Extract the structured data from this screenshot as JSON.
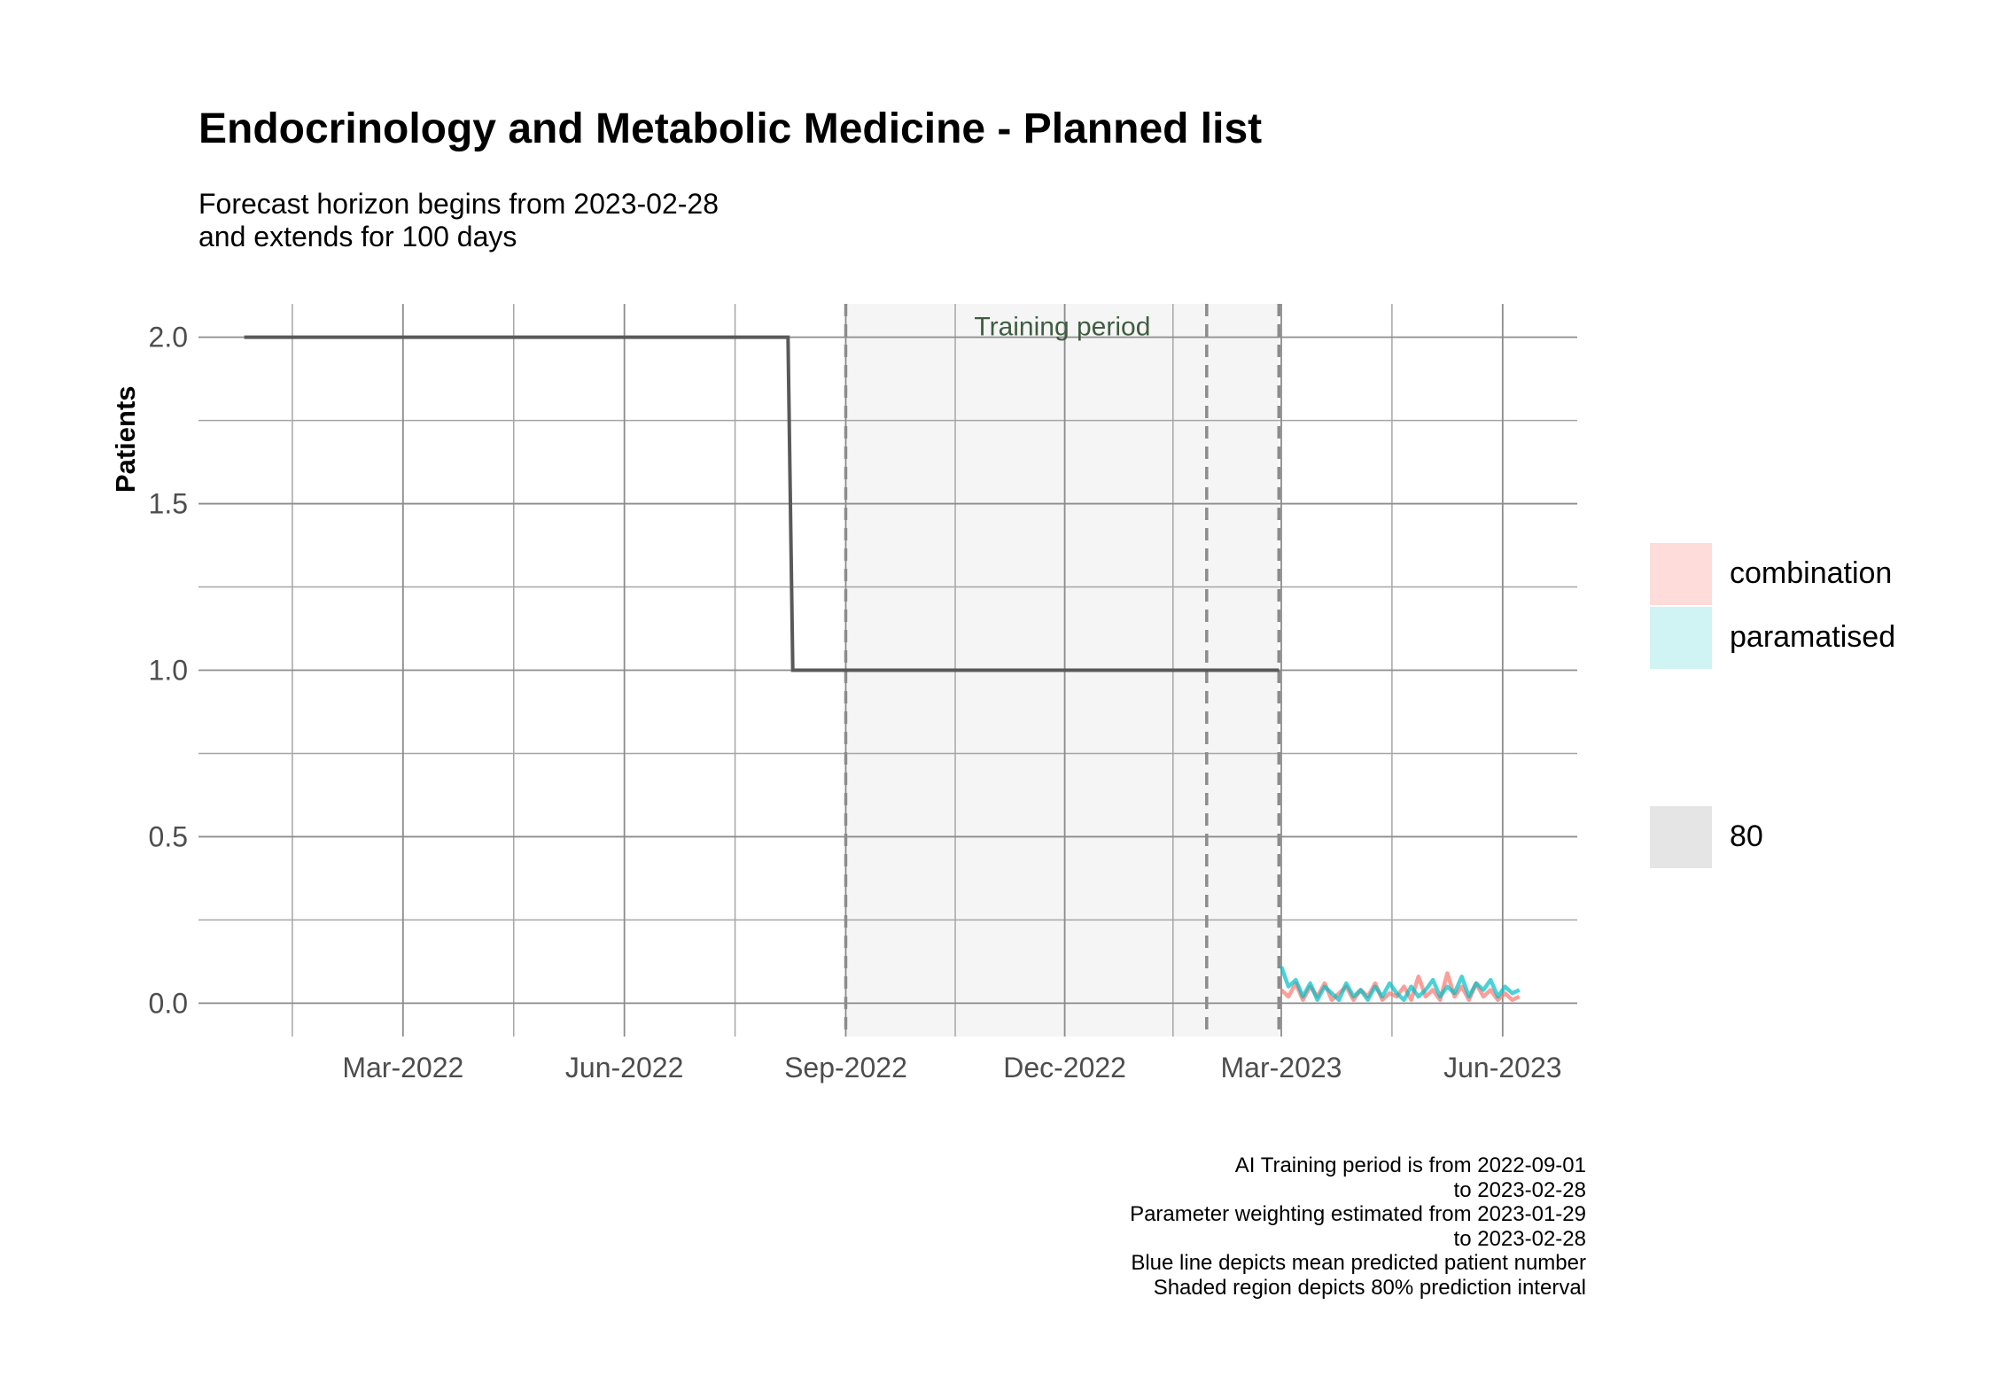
{
  "chart_data": {
    "type": "line",
    "title": "Endocrinology and Metabolic Medicine - Planned list",
    "subtitle": [
      "Forecast horizon begins from 2023-02-28",
      "and extends for 100 days"
    ],
    "ylabel": "Patients",
    "xlabel": "",
    "ylim": [
      -0.1,
      2.1
    ],
    "yticks": [
      0.0,
      0.5,
      1.0,
      1.5,
      2.0
    ],
    "ytick_labels": [
      "0.0",
      "0.5",
      "1.0",
      "1.5",
      "2.0"
    ],
    "xlim": [
      "2021-12-06",
      "2023-07-02"
    ],
    "xticks": [
      "2022-03-01",
      "2022-06-01",
      "2022-09-01",
      "2022-12-01",
      "2023-03-01",
      "2023-06-01"
    ],
    "xtick_labels": [
      "Mar-2022",
      "Jun-2022",
      "Sep-2022",
      "Dec-2022",
      "Mar-2023",
      "Jun-2023"
    ],
    "grid": true,
    "training_period": {
      "label": "Training period",
      "start": "2022-09-01",
      "end": "2023-02-28",
      "weighting_start": "2023-01-29"
    },
    "observed": {
      "color": "#595959",
      "points": [
        {
          "x": "2021-12-25",
          "y": 2
        },
        {
          "x": "2022-08-08",
          "y": 2
        },
        {
          "x": "2022-08-10",
          "y": 1
        },
        {
          "x": "2023-02-28",
          "y": 1
        }
      ]
    },
    "series": [
      {
        "name": "combination",
        "color": "#F8766D",
        "x": [
          "2023-03-01",
          "2023-03-04",
          "2023-03-07",
          "2023-03-10",
          "2023-03-13",
          "2023-03-16",
          "2023-03-19",
          "2023-03-22",
          "2023-03-25",
          "2023-03-28",
          "2023-03-31",
          "2023-04-03",
          "2023-04-06",
          "2023-04-09",
          "2023-04-12",
          "2023-04-15",
          "2023-04-18",
          "2023-04-21",
          "2023-04-24",
          "2023-04-27",
          "2023-04-30",
          "2023-05-03",
          "2023-05-06",
          "2023-05-09",
          "2023-05-12",
          "2023-05-15",
          "2023-05-18",
          "2023-05-21",
          "2023-05-24",
          "2023-05-27",
          "2023-05-30",
          "2023-06-02",
          "2023-06-05",
          "2023-06-08"
        ],
        "values": [
          0.04,
          0.02,
          0.06,
          0.01,
          0.05,
          0.02,
          0.06,
          0.01,
          0.03,
          0.05,
          0.01,
          0.04,
          0.02,
          0.06,
          0.01,
          0.03,
          0.02,
          0.05,
          0.01,
          0.08,
          0.02,
          0.04,
          0.01,
          0.09,
          0.02,
          0.05,
          0.01,
          0.06,
          0.02,
          0.04,
          0.01,
          0.03,
          0.01,
          0.02
        ]
      },
      {
        "name": "paramatised",
        "color": "#00BFC4",
        "x": [
          "2023-03-01",
          "2023-03-04",
          "2023-03-07",
          "2023-03-10",
          "2023-03-13",
          "2023-03-16",
          "2023-03-19",
          "2023-03-22",
          "2023-03-25",
          "2023-03-28",
          "2023-03-31",
          "2023-04-03",
          "2023-04-06",
          "2023-04-09",
          "2023-04-12",
          "2023-04-15",
          "2023-04-18",
          "2023-04-21",
          "2023-04-24",
          "2023-04-27",
          "2023-04-30",
          "2023-05-03",
          "2023-05-06",
          "2023-05-09",
          "2023-05-12",
          "2023-05-15",
          "2023-05-18",
          "2023-05-21",
          "2023-05-24",
          "2023-05-27",
          "2023-05-30",
          "2023-06-02",
          "2023-06-05",
          "2023-06-08"
        ],
        "values": [
          0.11,
          0.05,
          0.07,
          0.02,
          0.06,
          0.01,
          0.05,
          0.03,
          0.01,
          0.06,
          0.02,
          0.04,
          0.01,
          0.05,
          0.02,
          0.06,
          0.03,
          0.01,
          0.05,
          0.02,
          0.04,
          0.07,
          0.02,
          0.05,
          0.03,
          0.08,
          0.02,
          0.06,
          0.04,
          0.07,
          0.02,
          0.05,
          0.03,
          0.04
        ]
      }
    ],
    "legend": {
      "position": "right",
      "items": [
        {
          "label": "combination",
          "color": "#F8766D"
        },
        {
          "label": "paramatised",
          "color": "#00BFC4"
        }
      ],
      "interval_items": [
        {
          "label": "80",
          "color": "#bdbdbd"
        }
      ]
    },
    "caption": [
      "AI Training period is from 2022-09-01",
      "to 2023-02-28",
      "Parameter weighting estimated from 2023-01-29",
      "to 2023-02-28",
      "Blue line depicts mean predicted patient number",
      "Shaded region depicts 80% prediction interval"
    ]
  }
}
